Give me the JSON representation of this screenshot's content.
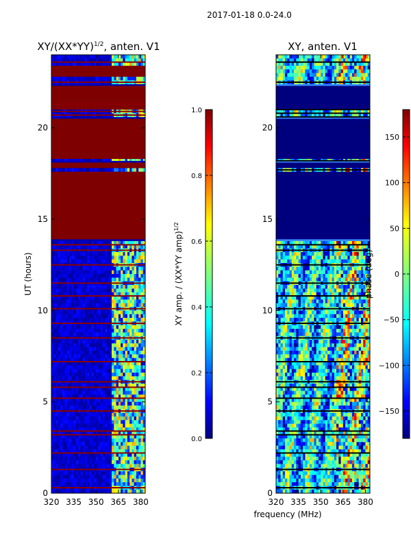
{
  "figure": {
    "suptitle": "2017-01-18 0.0-24.0",
    "xlabel": "frequency (MHz)"
  },
  "chart_data": [
    {
      "type": "heatmap",
      "title": "XY/(XX*YY)^1/2, anten. V1",
      "title_main": "XY/(XX*YY)",
      "title_sup": "1/2",
      "title_tail": ", anten. V1",
      "ylabel": "UT (hours)",
      "x_ticks": [
        320,
        335,
        350,
        365,
        380
      ],
      "y_ticks": [
        0,
        5,
        10,
        15,
        20
      ],
      "xlim": [
        320,
        383
      ],
      "ylim": [
        0,
        24
      ],
      "colorbar": {
        "label_main": "XY amp. / (XX*YY amp)",
        "label_sup": "1/2",
        "ticks": [
          "0.0",
          "0.2",
          "0.4",
          "0.6",
          "0.8",
          "1.0"
        ],
        "range": [
          0,
          1
        ],
        "colormap": "jet"
      },
      "saturated_bands_hours": [
        [
          13.9,
          17.6
        ],
        [
          17.8,
          18.1
        ],
        [
          18.3,
          20.5
        ],
        [
          21.0,
          22.3
        ],
        [
          22.8,
          23.4
        ]
      ],
      "thin_lines_hours": [
        0.3,
        1.3,
        2.2,
        3.2,
        3.4,
        4.5,
        5.2,
        5.8,
        6.1,
        7.2,
        8.5,
        9.3,
        10.1,
        10.8,
        11.5,
        12.5,
        13.3,
        13.6,
        20.7,
        20.9,
        21.3,
        22.5,
        23.6
      ],
      "high_freq_region_start_mhz": 360
    },
    {
      "type": "heatmap",
      "title": "XY, anten. V1",
      "x_ticks": [
        320,
        335,
        350,
        365,
        380
      ],
      "y_ticks": [
        0,
        5,
        10,
        15,
        20
      ],
      "xlim": [
        320,
        383
      ],
      "ylim": [
        0,
        24
      ],
      "colorbar": {
        "label": "phase (deg)",
        "ticks": [
          "−150",
          "−100",
          "−50",
          "0",
          "50",
          "100",
          "150"
        ],
        "tick_values": [
          -150,
          -100,
          -50,
          0,
          50,
          100,
          150
        ],
        "range": [
          -180,
          180
        ],
        "colormap": "jet"
      },
      "flat_bands_hours": [
        [
          13.9,
          17.6
        ],
        [
          17.8,
          18.1
        ],
        [
          18.3,
          20.5
        ],
        [
          21.0,
          22.3
        ]
      ],
      "black_lines_hours": [
        0.3,
        1.3,
        2.2,
        3.2,
        3.4,
        4.5,
        5.2,
        5.8,
        6.1,
        7.2,
        8.5,
        9.3,
        10.1,
        10.8,
        11.5,
        12.5,
        13.3,
        13.6,
        17.7,
        18.2,
        20.6,
        20.8,
        21.0,
        22.5,
        23.6
      ]
    }
  ]
}
